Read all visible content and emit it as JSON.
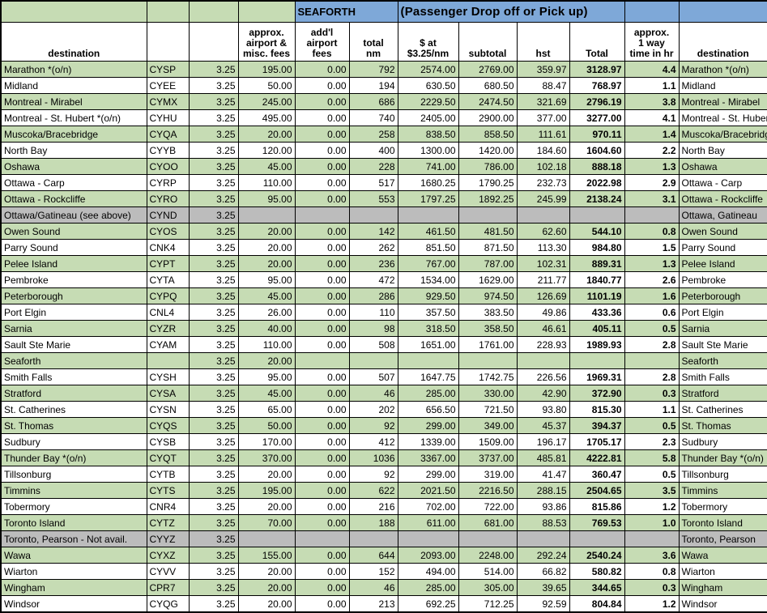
{
  "banner": {
    "seaforth": "SEAFORTH",
    "title": "(Passenger Drop off or Pick up)"
  },
  "columns": {
    "destination": "destination",
    "approx_fees": "approx.\nairport &\nmisc. fees",
    "addl_fees": "add'l\nairport\nfees",
    "total_nm": "total\nnm",
    "rate": "$ at\n$3.25/nm",
    "subtotal": "subtotal",
    "hst": "hst",
    "total": "Total",
    "time": "approx.\n1 way\ntime in hr",
    "destination2": "destination"
  },
  "colors": {
    "row_green": "#c6dcb4",
    "banner_blue": "#7ea8d8",
    "row_gray": "#bcbcbc",
    "border": "#000000"
  },
  "rows": [
    {
      "dest": "Marathon *(o/n)",
      "code": "CYSP",
      "rate": "3.25",
      "fees": "195.00",
      "addl": "0.00",
      "nm": "792",
      "amt": "2574.00",
      "sub": "2769.00",
      "hst": "359.97",
      "total": "3128.97",
      "time": "4.4",
      "dest2": "Marathon *(o/n)",
      "bg": "g"
    },
    {
      "dest": "Midland",
      "code": "CYEE",
      "rate": "3.25",
      "fees": "50.00",
      "addl": "0.00",
      "nm": "194",
      "amt": "630.50",
      "sub": "680.50",
      "hst": "88.47",
      "total": "768.97",
      "time": "1.1",
      "dest2": "Midland",
      "bg": "w"
    },
    {
      "dest": "Montreal - Mirabel",
      "code": "CYMX",
      "rate": "3.25",
      "fees": "245.00",
      "addl": "0.00",
      "nm": "686",
      "amt": "2229.50",
      "sub": "2474.50",
      "hst": "321.69",
      "total": "2796.19",
      "time": "3.8",
      "dest2": "Montreal - Mirabel",
      "bg": "g"
    },
    {
      "dest": "Montreal - St. Hubert *(o/n)",
      "code": "CYHU",
      "rate": "3.25",
      "fees": "495.00",
      "addl": "0.00",
      "nm": "740",
      "amt": "2405.00",
      "sub": "2900.00",
      "hst": "377.00",
      "total": "3277.00",
      "time": "4.1",
      "dest2": "Montreal - St. Hubert",
      "bg": "w"
    },
    {
      "dest": "Muscoka/Bracebridge",
      "code": "CYQA",
      "rate": "3.25",
      "fees": "20.00",
      "addl": "0.00",
      "nm": "258",
      "amt": "838.50",
      "sub": "858.50",
      "hst": "111.61",
      "total": "970.11",
      "time": "1.4",
      "dest2": "Muscoka/Bracebridge",
      "bg": "g"
    },
    {
      "dest": "North Bay",
      "code": "CYYB",
      "rate": "3.25",
      "fees": "120.00",
      "addl": "0.00",
      "nm": "400",
      "amt": "1300.00",
      "sub": "1420.00",
      "hst": "184.60",
      "total": "1604.60",
      "time": "2.2",
      "dest2": "North Bay",
      "bg": "w"
    },
    {
      "dest": "Oshawa",
      "code": "CYOO",
      "rate": "3.25",
      "fees": "45.00",
      "addl": "0.00",
      "nm": "228",
      "amt": "741.00",
      "sub": "786.00",
      "hst": "102.18",
      "total": "888.18",
      "time": "1.3",
      "dest2": "Oshawa",
      "bg": "g"
    },
    {
      "dest": "Ottawa - Carp",
      "code": "CYRP",
      "rate": "3.25",
      "fees": "110.00",
      "addl": "0.00",
      "nm": "517",
      "amt": "1680.25",
      "sub": "1790.25",
      "hst": "232.73",
      "total": "2022.98",
      "time": "2.9",
      "dest2": "Ottawa - Carp",
      "bg": "w"
    },
    {
      "dest": "Ottawa - Rockcliffe",
      "code": "CYRO",
      "rate": "3.25",
      "fees": "95.00",
      "addl": "0.00",
      "nm": "553",
      "amt": "1797.25",
      "sub": "1892.25",
      "hst": "245.99",
      "total": "2138.24",
      "time": "3.1",
      "dest2": "Ottawa - Rockcliffe",
      "bg": "g"
    },
    {
      "dest": "Ottawa/Gatineau (see above)",
      "code": "CYND",
      "rate": "3.25",
      "fees": "",
      "addl": "",
      "nm": "",
      "amt": "",
      "sub": "",
      "hst": "",
      "total": "",
      "time": "",
      "dest2": "Ottawa, Gatineau",
      "bg": "x"
    },
    {
      "dest": "Owen Sound",
      "code": "CYOS",
      "rate": "3.25",
      "fees": "20.00",
      "addl": "0.00",
      "nm": "142",
      "amt": "461.50",
      "sub": "481.50",
      "hst": "62.60",
      "total": "544.10",
      "time": "0.8",
      "dest2": "Owen Sound",
      "bg": "g"
    },
    {
      "dest": "Parry Sound",
      "code": "CNK4",
      "rate": "3.25",
      "fees": "20.00",
      "addl": "0.00",
      "nm": "262",
      "amt": "851.50",
      "sub": "871.50",
      "hst": "113.30",
      "total": "984.80",
      "time": "1.5",
      "dest2": "Parry Sound",
      "bg": "w"
    },
    {
      "dest": "Pelee Island",
      "code": "CYPT",
      "rate": "3.25",
      "fees": "20.00",
      "addl": "0.00",
      "nm": "236",
      "amt": "767.00",
      "sub": "787.00",
      "hst": "102.31",
      "total": "889.31",
      "time": "1.3",
      "dest2": "Pelee Island",
      "bg": "g"
    },
    {
      "dest": "Pembroke",
      "code": "CYTA",
      "rate": "3.25",
      "fees": "95.00",
      "addl": "0.00",
      "nm": "472",
      "amt": "1534.00",
      "sub": "1629.00",
      "hst": "211.77",
      "total": "1840.77",
      "time": "2.6",
      "dest2": "Pembroke",
      "bg": "w"
    },
    {
      "dest": "Peterborough",
      "code": "CYPQ",
      "rate": "3.25",
      "fees": "45.00",
      "addl": "0.00",
      "nm": "286",
      "amt": "929.50",
      "sub": "974.50",
      "hst": "126.69",
      "total": "1101.19",
      "time": "1.6",
      "dest2": "Peterborough",
      "bg": "g"
    },
    {
      "dest": "Port Elgin",
      "code": "CNL4",
      "rate": "3.25",
      "fees": "26.00",
      "addl": "0.00",
      "nm": "110",
      "amt": "357.50",
      "sub": "383.50",
      "hst": "49.86",
      "total": "433.36",
      "time": "0.6",
      "dest2": "Port Elgin",
      "bg": "w"
    },
    {
      "dest": "Sarnia",
      "code": "CYZR",
      "rate": "3.25",
      "fees": "40.00",
      "addl": "0.00",
      "nm": "98",
      "amt": "318.50",
      "sub": "358.50",
      "hst": "46.61",
      "total": "405.11",
      "time": "0.5",
      "dest2": "Sarnia",
      "bg": "g"
    },
    {
      "dest": "Sault Ste Marie",
      "code": "CYAM",
      "rate": "3.25",
      "fees": "110.00",
      "addl": "0.00",
      "nm": "508",
      "amt": "1651.00",
      "sub": "1761.00",
      "hst": "228.93",
      "total": "1989.93",
      "time": "2.8",
      "dest2": "Sault Ste Marie",
      "bg": "w"
    },
    {
      "dest": "Seaforth",
      "code": "",
      "rate": "3.25",
      "fees": "20.00",
      "addl": "",
      "nm": "",
      "amt": "",
      "sub": "",
      "hst": "",
      "total": "",
      "time": "",
      "dest2": "Seaforth",
      "bg": "g"
    },
    {
      "dest": "Smith Falls",
      "code": "CYSH",
      "rate": "3.25",
      "fees": "95.00",
      "addl": "0.00",
      "nm": "507",
      "amt": "1647.75",
      "sub": "1742.75",
      "hst": "226.56",
      "total": "1969.31",
      "time": "2.8",
      "dest2": "Smith Falls",
      "bg": "w"
    },
    {
      "dest": "Stratford",
      "code": "CYSA",
      "rate": "3.25",
      "fees": "45.00",
      "addl": "0.00",
      "nm": "46",
      "amt": "285.00",
      "sub": "330.00",
      "hst": "42.90",
      "total": "372.90",
      "time": "0.3",
      "dest2": "Stratford",
      "bg": "g"
    },
    {
      "dest": "St. Catherines",
      "code": "CYSN",
      "rate": "3.25",
      "fees": "65.00",
      "addl": "0.00",
      "nm": "202",
      "amt": "656.50",
      "sub": "721.50",
      "hst": "93.80",
      "total": "815.30",
      "time": "1.1",
      "dest2": "St. Catherines",
      "bg": "w"
    },
    {
      "dest": "St. Thomas",
      "code": "CYQS",
      "rate": "3.25",
      "fees": "50.00",
      "addl": "0.00",
      "nm": "92",
      "amt": "299.00",
      "sub": "349.00",
      "hst": "45.37",
      "total": "394.37",
      "time": "0.5",
      "dest2": "St. Thomas",
      "bg": "g"
    },
    {
      "dest": "Sudbury",
      "code": "CYSB",
      "rate": "3.25",
      "fees": "170.00",
      "addl": "0.00",
      "nm": "412",
      "amt": "1339.00",
      "sub": "1509.00",
      "hst": "196.17",
      "total": "1705.17",
      "time": "2.3",
      "dest2": "Sudbury",
      "bg": "w"
    },
    {
      "dest": "Thunder Bay *(o/n)",
      "code": "CYQT",
      "rate": "3.25",
      "fees": "370.00",
      "addl": "0.00",
      "nm": "1036",
      "amt": "3367.00",
      "sub": "3737.00",
      "hst": "485.81",
      "total": "4222.81",
      "time": "5.8",
      "dest2": "Thunder Bay *(o/n)",
      "bg": "g"
    },
    {
      "dest": "Tillsonburg",
      "code": "CYTB",
      "rate": "3.25",
      "fees": "20.00",
      "addl": "0.00",
      "nm": "92",
      "amt": "299.00",
      "sub": "319.00",
      "hst": "41.47",
      "total": "360.47",
      "time": "0.5",
      "dest2": "Tillsonburg",
      "bg": "w"
    },
    {
      "dest": "Timmins",
      "code": "CYTS",
      "rate": "3.25",
      "fees": "195.00",
      "addl": "0.00",
      "nm": "622",
      "amt": "2021.50",
      "sub": "2216.50",
      "hst": "288.15",
      "total": "2504.65",
      "time": "3.5",
      "dest2": "Timmins",
      "bg": "g"
    },
    {
      "dest": "Tobermory",
      "code": "CNR4",
      "rate": "3.25",
      "fees": "20.00",
      "addl": "0.00",
      "nm": "216",
      "amt": "702.00",
      "sub": "722.00",
      "hst": "93.86",
      "total": "815.86",
      "time": "1.2",
      "dest2": "Tobermory",
      "bg": "w"
    },
    {
      "dest": "Toronto Island",
      "code": "CYTZ",
      "rate": "3.25",
      "fees": "70.00",
      "addl": "0.00",
      "nm": "188",
      "amt": "611.00",
      "sub": "681.00",
      "hst": "88.53",
      "total": "769.53",
      "time": "1.0",
      "dest2": "Toronto Island",
      "bg": "g"
    },
    {
      "dest": "Toronto, Pearson - Not avail.",
      "code": "CYYZ",
      "rate": "3.25",
      "fees": "",
      "addl": "",
      "nm": "",
      "amt": "",
      "sub": "",
      "hst": "",
      "total": "",
      "time": "",
      "dest2": "Toronto, Pearson",
      "bg": "x"
    },
    {
      "dest": "Wawa",
      "code": "CYXZ",
      "rate": "3.25",
      "fees": "155.00",
      "addl": "0.00",
      "nm": "644",
      "amt": "2093.00",
      "sub": "2248.00",
      "hst": "292.24",
      "total": "2540.24",
      "time": "3.6",
      "dest2": "Wawa",
      "bg": "g"
    },
    {
      "dest": "Wiarton",
      "code": "CYVV",
      "rate": "3.25",
      "fees": "20.00",
      "addl": "0.00",
      "nm": "152",
      "amt": "494.00",
      "sub": "514.00",
      "hst": "66.82",
      "total": "580.82",
      "time": "0.8",
      "dest2": "Wiarton",
      "bg": "w"
    },
    {
      "dest": "Wingham",
      "code": "CPR7",
      "rate": "3.25",
      "fees": "20.00",
      "addl": "0.00",
      "nm": "46",
      "amt": "285.00",
      "sub": "305.00",
      "hst": "39.65",
      "total": "344.65",
      "time": "0.3",
      "dest2": "Wingham",
      "bg": "g"
    },
    {
      "dest": "Windsor",
      "code": "CYQG",
      "rate": "3.25",
      "fees": "20.00",
      "addl": "0.00",
      "nm": "213",
      "amt": "692.25",
      "sub": "712.25",
      "hst": "92.59",
      "total": "804.84",
      "time": "1.2",
      "dest2": "Windsor",
      "bg": "w"
    }
  ]
}
